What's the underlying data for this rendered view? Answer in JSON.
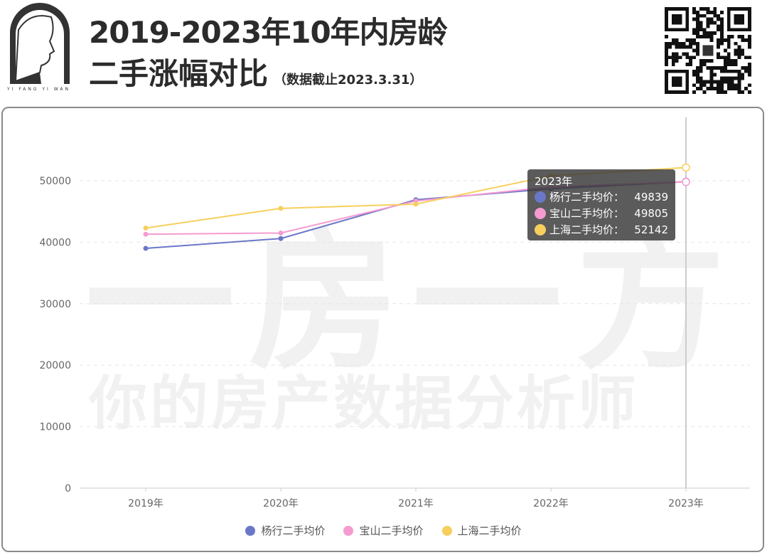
{
  "header": {
    "title_line1": "2019-2023年10年内房龄",
    "title_line2": "二手涨幅对比",
    "note": "（数据截止2023.3.31）",
    "logo_caption": "YI FANG YI WAN"
  },
  "watermark": {
    "big": "一房一方",
    "sub": "你的房产数据分析师"
  },
  "tooltip": {
    "title": "2023年",
    "rows": [
      {
        "label": "杨行二手均价：",
        "value": "49839"
      },
      {
        "label": "宝山二手均价：",
        "value": "49805"
      },
      {
        "label": "上海二手均价：",
        "value": "52142"
      }
    ]
  },
  "chart_data": {
    "type": "line",
    "categories": [
      "2019年",
      "2020年",
      "2021年",
      "2022年",
      "2023年"
    ],
    "ylim": [
      0,
      55000
    ],
    "yticks": [
      0,
      10000,
      20000,
      30000,
      40000,
      50000
    ],
    "grid": true,
    "legend_position": "bottom",
    "highlighted_category": "2023年",
    "series": [
      {
        "name": "杨行二手均价",
        "color": "#6a77c8",
        "values": [
          39000,
          40600,
          46900,
          48700,
          49839
        ]
      },
      {
        "name": "宝山二手均价",
        "color": "#f59bd0",
        "values": [
          41300,
          41500,
          46700,
          49000,
          49805
        ]
      },
      {
        "name": "上海二手均价",
        "color": "#f7cf5e",
        "values": [
          42300,
          45500,
          46200,
          50800,
          52142
        ]
      }
    ]
  }
}
